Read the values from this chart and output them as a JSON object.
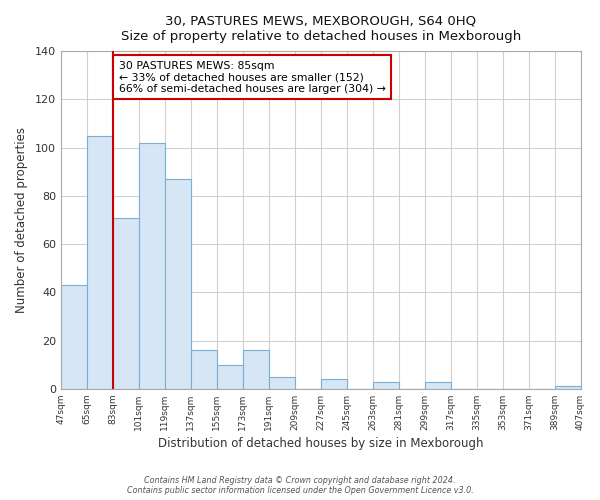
{
  "title": "30, PASTURES MEWS, MEXBOROUGH, S64 0HQ",
  "subtitle": "Size of property relative to detached houses in Mexborough",
  "xlabel": "Distribution of detached houses by size in Mexborough",
  "ylabel": "Number of detached properties",
  "bar_edges": [
    47,
    65,
    83,
    101,
    119,
    137,
    155,
    173,
    191,
    209,
    227,
    245,
    263,
    281,
    299,
    317,
    335,
    353,
    371,
    389,
    407
  ],
  "bar_heights": [
    43,
    105,
    71,
    102,
    87,
    16,
    10,
    16,
    5,
    0,
    4,
    0,
    3,
    0,
    3,
    0,
    0,
    0,
    0,
    1
  ],
  "bar_color": "#d6e6f5",
  "bar_edge_color": "#7aafd4",
  "vline_x": 83,
  "vline_color": "#cc0000",
  "ylim": [
    0,
    140
  ],
  "yticks": [
    0,
    20,
    40,
    60,
    80,
    100,
    120,
    140
  ],
  "annotation_title": "30 PASTURES MEWS: 85sqm",
  "annotation_line1": "← 33% of detached houses are smaller (152)",
  "annotation_line2": "66% of semi-detached houses are larger (304) →",
  "annotation_box_color": "white",
  "annotation_box_edge_color": "#cc0000",
  "footer1": "Contains HM Land Registry data © Crown copyright and database right 2024.",
  "footer2": "Contains public sector information licensed under the Open Government Licence v3.0.",
  "tick_labels": [
    "47sqm",
    "65sqm",
    "83sqm",
    "101sqm",
    "119sqm",
    "137sqm",
    "155sqm",
    "173sqm",
    "191sqm",
    "209sqm",
    "227sqm",
    "245sqm",
    "263sqm",
    "281sqm",
    "299sqm",
    "317sqm",
    "335sqm",
    "353sqm",
    "371sqm",
    "389sqm",
    "407sqm"
  ],
  "plot_bg_color": "#ffffff",
  "fig_bg_color": "#ffffff",
  "grid_color": "#d0d0d0",
  "spine_color": "#aaaaaa"
}
